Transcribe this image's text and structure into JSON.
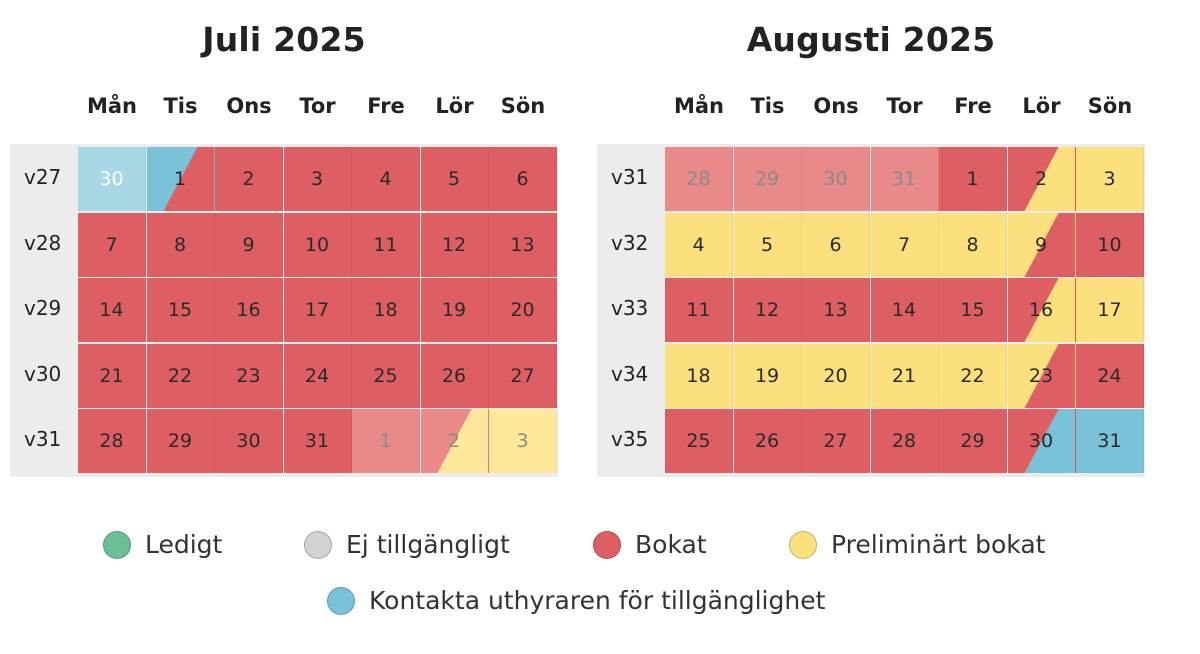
{
  "colors": {
    "booked": "#dd5f63",
    "booked_past": "#e88a89",
    "prelim": "#fde07e",
    "prelim_past": "#fde79b",
    "contact": "#7ac2d7",
    "contact_past": "#a8d8e6",
    "free": "#6bbf95",
    "unavailable": "#d3d3d3",
    "cell_text_past": "#8a8a8a",
    "cell_text_white": "#ffffff"
  },
  "weekday_labels": [
    "Mån",
    "Tis",
    "Ons",
    "Tor",
    "Fre",
    "Lör",
    "Sön"
  ],
  "months": [
    {
      "title": "Juli 2025",
      "weeks": [
        {
          "label": "v27",
          "days": [
            {
              "n": "30",
              "c": "contact_past",
              "text": "white"
            },
            {
              "n": "1",
              "c": "contact",
              "c2": "booked"
            },
            {
              "n": "2",
              "c": "booked"
            },
            {
              "n": "3",
              "c": "booked"
            },
            {
              "n": "4",
              "c": "booked"
            },
            {
              "n": "5",
              "c": "booked"
            },
            {
              "n": "6",
              "c": "booked"
            }
          ]
        },
        {
          "label": "v28",
          "days": [
            {
              "n": "7",
              "c": "booked"
            },
            {
              "n": "8",
              "c": "booked"
            },
            {
              "n": "9",
              "c": "booked"
            },
            {
              "n": "10",
              "c": "booked"
            },
            {
              "n": "11",
              "c": "booked"
            },
            {
              "n": "12",
              "c": "booked"
            },
            {
              "n": "13",
              "c": "booked"
            }
          ]
        },
        {
          "label": "v29",
          "days": [
            {
              "n": "14",
              "c": "booked"
            },
            {
              "n": "15",
              "c": "booked"
            },
            {
              "n": "16",
              "c": "booked"
            },
            {
              "n": "17",
              "c": "booked"
            },
            {
              "n": "18",
              "c": "booked"
            },
            {
              "n": "19",
              "c": "booked"
            },
            {
              "n": "20",
              "c": "booked"
            }
          ]
        },
        {
          "label": "v30",
          "days": [
            {
              "n": "21",
              "c": "booked"
            },
            {
              "n": "22",
              "c": "booked"
            },
            {
              "n": "23",
              "c": "booked"
            },
            {
              "n": "24",
              "c": "booked"
            },
            {
              "n": "25",
              "c": "booked"
            },
            {
              "n": "26",
              "c": "booked"
            },
            {
              "n": "27",
              "c": "booked"
            }
          ]
        },
        {
          "label": "v31",
          "days": [
            {
              "n": "28",
              "c": "booked"
            },
            {
              "n": "29",
              "c": "booked"
            },
            {
              "n": "30",
              "c": "booked"
            },
            {
              "n": "31",
              "c": "booked"
            },
            {
              "n": "1",
              "c": "booked_past",
              "text": "past"
            },
            {
              "n": "2",
              "c": "booked_past",
              "c2": "prelim_past",
              "text": "past"
            },
            {
              "n": "3",
              "c": "prelim_past",
              "text": "past"
            }
          ]
        }
      ]
    },
    {
      "title": "Augusti 2025",
      "weeks": [
        {
          "label": "v31",
          "days": [
            {
              "n": "28",
              "c": "booked_past",
              "text": "past"
            },
            {
              "n": "29",
              "c": "booked_past",
              "text": "past"
            },
            {
              "n": "30",
              "c": "booked_past",
              "text": "past"
            },
            {
              "n": "31",
              "c": "booked_past",
              "text": "past"
            },
            {
              "n": "1",
              "c": "booked"
            },
            {
              "n": "2",
              "c": "booked",
              "c2": "prelim"
            },
            {
              "n": "3",
              "c": "prelim"
            }
          ]
        },
        {
          "label": "v32",
          "days": [
            {
              "n": "4",
              "c": "prelim"
            },
            {
              "n": "5",
              "c": "prelim"
            },
            {
              "n": "6",
              "c": "prelim"
            },
            {
              "n": "7",
              "c": "prelim"
            },
            {
              "n": "8",
              "c": "prelim"
            },
            {
              "n": "9",
              "c": "prelim",
              "c2": "booked"
            },
            {
              "n": "10",
              "c": "booked"
            }
          ]
        },
        {
          "label": "v33",
          "days": [
            {
              "n": "11",
              "c": "booked"
            },
            {
              "n": "12",
              "c": "booked"
            },
            {
              "n": "13",
              "c": "booked"
            },
            {
              "n": "14",
              "c": "booked"
            },
            {
              "n": "15",
              "c": "booked"
            },
            {
              "n": "16",
              "c": "booked",
              "c2": "prelim"
            },
            {
              "n": "17",
              "c": "prelim"
            }
          ]
        },
        {
          "label": "v34",
          "days": [
            {
              "n": "18",
              "c": "prelim"
            },
            {
              "n": "19",
              "c": "prelim"
            },
            {
              "n": "20",
              "c": "prelim"
            },
            {
              "n": "21",
              "c": "prelim"
            },
            {
              "n": "22",
              "c": "prelim"
            },
            {
              "n": "23",
              "c": "prelim",
              "c2": "booked"
            },
            {
              "n": "24",
              "c": "booked"
            }
          ]
        },
        {
          "label": "v35",
          "days": [
            {
              "n": "25",
              "c": "booked"
            },
            {
              "n": "26",
              "c": "booked"
            },
            {
              "n": "27",
              "c": "booked"
            },
            {
              "n": "28",
              "c": "booked"
            },
            {
              "n": "29",
              "c": "booked"
            },
            {
              "n": "30",
              "c": "booked",
              "c2": "contact"
            },
            {
              "n": "31",
              "c": "contact"
            }
          ]
        }
      ]
    }
  ],
  "legend": [
    {
      "label": "Ledigt",
      "color": "free"
    },
    {
      "label": "Ej tillgängligt",
      "color": "unavailable"
    },
    {
      "label": "Bokat",
      "color": "booked"
    },
    {
      "label": "Preliminärt bokat",
      "color": "prelim"
    },
    {
      "label": "Kontakta uthyraren för tillgänglighet",
      "color": "contact"
    }
  ]
}
